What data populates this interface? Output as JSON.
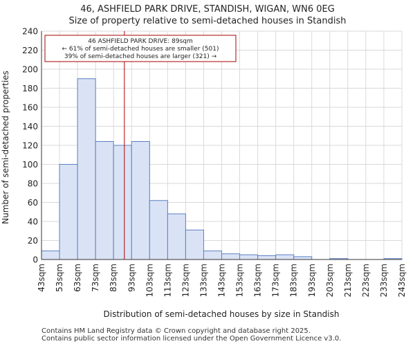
{
  "chart_data": {
    "type": "bar",
    "title": "46, ASHFIELD PARK DRIVE, STANDISH, WIGAN, WN6 0EG",
    "subtitle": "Size of property relative to semi-detached houses in Standish",
    "xlabel": "Distribution of semi-detached houses by size in Standish",
    "ylabel": "Number of semi-detached properties",
    "ylim": [
      0,
      240
    ],
    "yticks": [
      0,
      20,
      40,
      60,
      80,
      100,
      120,
      140,
      160,
      180,
      200,
      220,
      240
    ],
    "bin_edges": [
      43,
      53,
      63,
      73,
      83,
      93,
      103,
      113,
      123,
      133,
      143,
      153,
      163,
      173,
      183,
      193,
      203,
      213,
      223,
      233,
      243
    ],
    "xtick_labels": [
      "43sqm",
      "53sqm",
      "63sqm",
      "73sqm",
      "83sqm",
      "93sqm",
      "103sqm",
      "113sqm",
      "123sqm",
      "133sqm",
      "143sqm",
      "153sqm",
      "163sqm",
      "173sqm",
      "183sqm",
      "193sqm",
      "203sqm",
      "213sqm",
      "223sqm",
      "233sqm",
      "243sqm"
    ],
    "values": [
      9,
      100,
      190,
      124,
      120,
      124,
      62,
      48,
      31,
      9,
      6,
      5,
      4,
      5,
      3,
      0,
      1,
      0,
      0,
      1
    ],
    "marker": {
      "value": 89,
      "color": "#aa0000"
    },
    "annotation": [
      "46 ASHFIELD PARK DRIVE: 89sqm",
      "← 61% of semi-detached houses are smaller (501)",
      "39% of semi-detached houses are larger (321) →"
    ],
    "bar_fill": "#dae3f5",
    "bar_stroke": "#5b7fc4"
  },
  "footer": {
    "line1": "Contains HM Land Registry data © Crown copyright and database right 2025.",
    "line2": "Contains public sector information licensed under the Open Government Licence v3.0."
  }
}
